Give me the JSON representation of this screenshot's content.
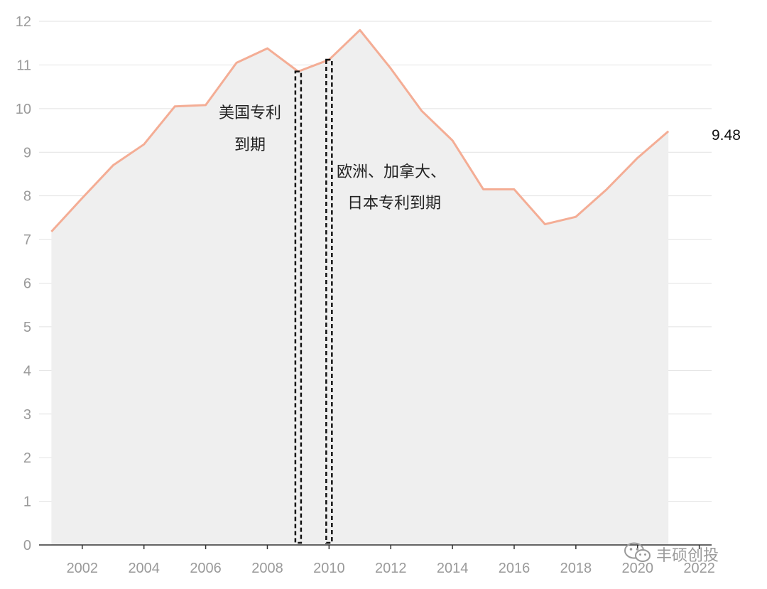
{
  "chart_data": {
    "type": "area",
    "x": [
      2001,
      2002,
      2003,
      2004,
      2005,
      2006,
      2007,
      2008,
      2009,
      2010,
      2011,
      2012,
      2013,
      2014,
      2015,
      2016,
      2017,
      2018,
      2019,
      2020,
      2021
    ],
    "values": [
      7.18,
      7.95,
      8.7,
      9.18,
      10.05,
      10.08,
      11.05,
      11.38,
      10.85,
      11.12,
      11.8,
      10.92,
      9.95,
      9.27,
      8.15,
      8.15,
      7.35,
      7.52,
      8.15,
      8.87,
      9.48
    ],
    "ylim": [
      0,
      12
    ],
    "yticks": [
      0,
      1,
      2,
      3,
      4,
      5,
      6,
      7,
      8,
      9,
      10,
      11,
      12
    ],
    "xticks": [
      2002,
      2004,
      2006,
      2008,
      2010,
      2012,
      2014,
      2016,
      2018,
      2020,
      2022
    ],
    "xlim": [
      2000.6,
      2022.4
    ],
    "grid": true,
    "end_label": "9.48",
    "annotations": [
      {
        "x": 2009,
        "lines": [
          "美国专利",
          "到期"
        ]
      },
      {
        "x": 2010,
        "lines": [
          "欧洲、加拿大、",
          "日本专利到期"
        ]
      }
    ],
    "colors": {
      "line": "#f4ad95",
      "fill": "#efefef",
      "grid": "#e2e2e2",
      "tick": "#9a9a9a",
      "marker": "#111111"
    }
  },
  "watermark": {
    "text": "丰硕创投",
    "icon": "wechat-icon"
  }
}
